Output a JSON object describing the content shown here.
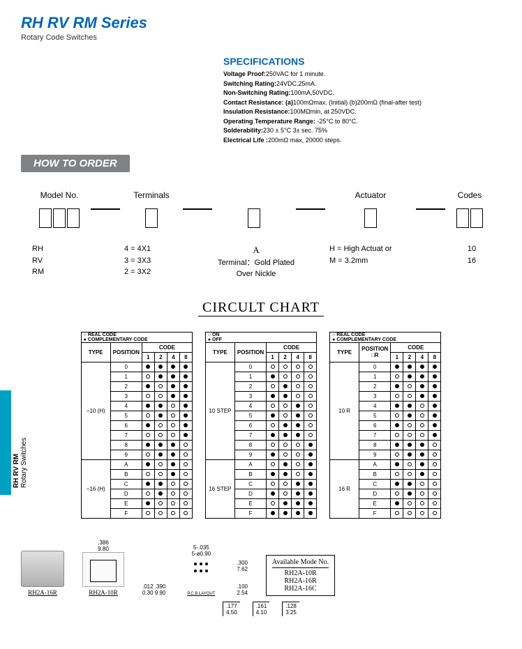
{
  "title": "RH RV RM Series",
  "subtitle": "Rotary Code Switches",
  "specs_heading": "SPECIFICATIONS",
  "specs": [
    {
      "label": "Voltage Proof:",
      "val": "250VAC for 1 minute."
    },
    {
      "label": "Switching Rating:",
      "val": "24VDC,25mA."
    },
    {
      "label": "Non-Switching Rating:",
      "val": "100mA,50VDC."
    },
    {
      "label": "Contact Resistance: (a)",
      "val": "100mΩmax. (Initial)    (b)200mΩ (final-after test)"
    },
    {
      "label": "Insulation Resistance:",
      "val": "100MΩmin, at 250VDC."
    },
    {
      "label": "Operating Temperature Range:",
      "val": " -25°C to 80°C."
    },
    {
      "label": "Solderability:",
      "val": "230 ± 5°C  3± sec. 75%"
    },
    {
      "label": "Electrical Life :",
      "val": "200mΩ max,  20000 steps."
    }
  ],
  "how_to_order": "HOW TO ORDER",
  "order_cols": {
    "model": {
      "hd": "Model No.",
      "opts": [
        "RH",
        "RV",
        "RM"
      ]
    },
    "terminals": {
      "hd": "Terminals",
      "opts": [
        "4 = 4X1",
        "3 = 3X3",
        "2 = 3X2"
      ]
    },
    "blank": {
      "hd": "",
      "opts_title": "A",
      "opts": [
        "Terminal：Gold  Plated",
        "Over  Nickle"
      ]
    },
    "actuator": {
      "hd": "Actuator",
      "opts": [
        "H = High Actuat  or",
        "M = 3.2mm"
      ]
    },
    "codes": {
      "hd": "Codes",
      "opts": [
        "10",
        "16"
      ]
    }
  },
  "circuit_heading": "CIRCULT CHART",
  "positions": [
    "0",
    "1",
    "2",
    "3",
    "4",
    "5",
    "6",
    "7",
    "8",
    "9",
    "A",
    "B",
    "C",
    "D",
    "E",
    "F"
  ],
  "code_cols": [
    "1",
    "2",
    "4",
    "8"
  ],
  "table1": {
    "legend": [
      "○ REAL CODE",
      "● COMPLEMENTARY CODE"
    ],
    "type_labels": [
      "○10 (H)",
      "○16 (H)"
    ],
    "rows": [
      [
        "f",
        "f",
        "f",
        "f"
      ],
      [
        "o",
        "f",
        "f",
        "f"
      ],
      [
        "f",
        "o",
        "f",
        "f"
      ],
      [
        "o",
        "o",
        "f",
        "f"
      ],
      [
        "f",
        "f",
        "o",
        "f"
      ],
      [
        "o",
        "f",
        "o",
        "f"
      ],
      [
        "f",
        "o",
        "o",
        "f"
      ],
      [
        "o",
        "o",
        "o",
        "f"
      ],
      [
        "f",
        "f",
        "f",
        "o"
      ],
      [
        "o",
        "f",
        "f",
        "o"
      ],
      [
        "f",
        "o",
        "f",
        "o"
      ],
      [
        "o",
        "o",
        "f",
        "o"
      ],
      [
        "f",
        "f",
        "o",
        "o"
      ],
      [
        "o",
        "f",
        "o",
        "o"
      ],
      [
        "f",
        "o",
        "o",
        "o"
      ],
      [
        "o",
        "o",
        "o",
        "o"
      ]
    ]
  },
  "table2": {
    "legend": [
      "○ ON",
      "● OFF"
    ],
    "type_labels": [
      "10 STEP",
      "16 STEP"
    ],
    "rows": [
      [
        "o",
        "o",
        "o",
        "o"
      ],
      [
        "f",
        "o",
        "o",
        "o"
      ],
      [
        "o",
        "f",
        "o",
        "o"
      ],
      [
        "f",
        "f",
        "o",
        "o"
      ],
      [
        "o",
        "o",
        "f",
        "o"
      ],
      [
        "f",
        "o",
        "f",
        "o"
      ],
      [
        "o",
        "f",
        "f",
        "o"
      ],
      [
        "f",
        "f",
        "f",
        "o"
      ],
      [
        "o",
        "o",
        "o",
        "f"
      ],
      [
        "f",
        "o",
        "o",
        "f"
      ],
      [
        "o",
        "f",
        "o",
        "f"
      ],
      [
        "f",
        "f",
        "o",
        "f"
      ],
      [
        "o",
        "o",
        "f",
        "f"
      ],
      [
        "f",
        "o",
        "f",
        "f"
      ],
      [
        "o",
        "f",
        "f",
        "f"
      ],
      [
        "f",
        "f",
        "f",
        "f"
      ]
    ]
  },
  "table3": {
    "legend": [
      "○ REAL CODE",
      "● COMPLEMENTARY CODE"
    ],
    "type_labels": [
      "10 R",
      "16 R"
    ],
    "pos_hdr_extra": "□R",
    "rows": [
      [
        "f",
        "f",
        "f",
        "f"
      ],
      [
        "o",
        "f",
        "f",
        "f"
      ],
      [
        "f",
        "o",
        "f",
        "f"
      ],
      [
        "o",
        "o",
        "f",
        "f"
      ],
      [
        "f",
        "f",
        "o",
        "f"
      ],
      [
        "o",
        "f",
        "o",
        "f"
      ],
      [
        "f",
        "o",
        "o",
        "f"
      ],
      [
        "o",
        "o",
        "o",
        "f"
      ],
      [
        "f",
        "f",
        "f",
        "o"
      ],
      [
        "o",
        "f",
        "f",
        "o"
      ],
      [
        "f",
        "o",
        "f",
        "o"
      ],
      [
        "o",
        "o",
        "f",
        "o"
      ],
      [
        "f",
        "f",
        "o",
        "o"
      ],
      [
        "o",
        "f",
        "o",
        "o"
      ],
      [
        "f",
        "o",
        "o",
        "o"
      ],
      [
        "o",
        "o",
        "o",
        "o"
      ]
    ]
  },
  "footer": {
    "model1": "RH2A-16R",
    "model2": "RH2A-10R",
    "dims_top1": ".386",
    "dims_top1b": "9.80",
    "dims_r1": ".390",
    "dims_r1b": "9.90",
    "dims_r2": ".012",
    "dims_r2b": "0.30",
    "pcb1": "5-.035",
    "pcb1b": "5-ø0.90",
    "pcb2": ".300",
    "pcb2b": "7.62",
    "pcb3": ".100",
    "pcb3b": "2.54",
    "pcb_label": "P.C.B.LAYOUT",
    "avail_hd": "Available Mode No.",
    "avail": [
      "RH2A-10R",
      "RH2A-16R",
      "RH2A-16C"
    ],
    "bot1a": ".177",
    "bot1b": "4.50",
    "bot2a": ".161",
    "bot2b": "4.10",
    "bot3a": ".128",
    "bot3b": "3.25"
  },
  "side_label_bold": "RH RV RM",
  "side_label": "Rotary Switches"
}
